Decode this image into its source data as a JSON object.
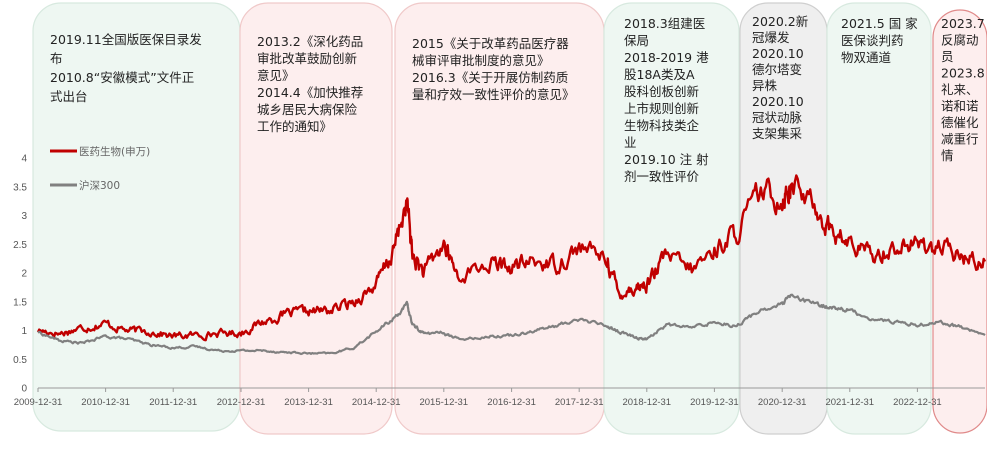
{
  "chart_data": {
    "type": "line",
    "title": "",
    "xlabel": "",
    "ylabel": "",
    "ylim": [
      0,
      4
    ],
    "yticks": [
      "0",
      "0.5",
      "1",
      "1.5",
      "2",
      "2.5",
      "3",
      "3.5",
      "4"
    ],
    "xticks": [
      "2009-12-31",
      "2010-12-31",
      "2011-12-31",
      "2012-12-31",
      "2013-12-31",
      "2014-12-31",
      "2015-12-31",
      "2016-12-31",
      "2017-12-31",
      "2018-12-31",
      "2019-12-31",
      "2020-12-31",
      "2021-12-31",
      "2022-12-31"
    ],
    "legend_position": "upper-left",
    "series": [
      {
        "name": "医药生物(申万)",
        "color": "#c00000",
        "x": [
          "2009-12-31",
          "2010-04-30",
          "2010-08-31",
          "2010-12-31",
          "2011-04-30",
          "2011-08-31",
          "2011-12-31",
          "2012-04-30",
          "2012-08-31",
          "2012-12-31",
          "2013-04-30",
          "2013-08-31",
          "2013-12-31",
          "2014-04-30",
          "2014-08-31",
          "2014-12-31",
          "2015-03-31",
          "2015-06-15",
          "2015-07-15",
          "2015-09-15",
          "2015-12-31",
          "2016-03-15",
          "2016-08-31",
          "2016-12-31",
          "2017-04-30",
          "2017-08-31",
          "2017-12-31",
          "2018-05-31",
          "2018-07-31",
          "2018-10-31",
          "2018-12-31",
          "2019-04-15",
          "2019-08-31",
          "2019-12-31",
          "2020-04-30",
          "2020-08-31",
          "2020-12-31",
          "2021-02-15",
          "2021-06-30",
          "2021-09-30",
          "2021-12-31",
          "2022-04-30",
          "2022-08-31",
          "2022-12-31",
          "2023-04-30",
          "2023-08-31",
          "2023-12-31"
        ],
        "values": [
          1.0,
          0.95,
          1.05,
          1.12,
          1.0,
          0.98,
          0.9,
          0.92,
          0.95,
          0.96,
          1.15,
          1.28,
          1.33,
          1.35,
          1.5,
          1.8,
          2.35,
          3.25,
          2.3,
          2.0,
          2.5,
          1.95,
          2.15,
          2.1,
          2.2,
          2.15,
          2.45,
          2.25,
          1.65,
          1.75,
          1.8,
          2.3,
          2.05,
          2.4,
          2.7,
          3.4,
          3.3,
          3.55,
          3.15,
          2.7,
          2.5,
          2.3,
          2.45,
          2.5,
          2.45,
          2.25,
          2.2
        ]
      },
      {
        "name": "沪深300",
        "color": "#808080",
        "x": [
          "2009-12-31",
          "2010-04-30",
          "2010-08-31",
          "2010-12-31",
          "2011-04-30",
          "2011-08-31",
          "2011-12-31",
          "2012-04-30",
          "2012-08-31",
          "2012-12-31",
          "2013-04-30",
          "2013-08-31",
          "2013-12-31",
          "2014-04-30",
          "2014-08-31",
          "2014-12-31",
          "2015-03-31",
          "2015-06-15",
          "2015-07-15",
          "2015-09-15",
          "2015-12-31",
          "2016-03-15",
          "2016-08-31",
          "2016-12-31",
          "2017-04-30",
          "2017-08-31",
          "2017-12-31",
          "2018-05-31",
          "2018-07-31",
          "2018-10-31",
          "2018-12-31",
          "2019-04-15",
          "2019-08-31",
          "2019-12-31",
          "2020-04-30",
          "2020-08-31",
          "2020-12-31",
          "2021-02-15",
          "2021-06-30",
          "2021-09-30",
          "2021-12-31",
          "2022-04-30",
          "2022-08-31",
          "2022-12-31",
          "2023-04-30",
          "2023-08-31",
          "2023-12-31"
        ],
        "values": [
          0.97,
          0.82,
          0.78,
          0.9,
          0.85,
          0.75,
          0.7,
          0.72,
          0.65,
          0.65,
          0.65,
          0.62,
          0.6,
          0.6,
          0.7,
          0.98,
          1.2,
          1.45,
          1.1,
          0.95,
          0.96,
          0.85,
          0.9,
          0.92,
          1.0,
          1.08,
          1.2,
          1.08,
          0.98,
          0.88,
          0.85,
          1.1,
          1.05,
          1.15,
          1.08,
          1.35,
          1.45,
          1.6,
          1.45,
          1.4,
          1.35,
          1.2,
          1.15,
          1.1,
          1.15,
          1.05,
          0.92
        ]
      }
    ],
    "annotations": [
      {
        "id": "a1",
        "fill": "#eef7f2",
        "stroke": "#d7e9df",
        "lines": [
          "2019.11全国版医保目录发",
          "布",
          "2010.8“安徽模式”文件正",
          "式出台"
        ]
      },
      {
        "id": "a2",
        "fill": "#fdeeee",
        "stroke": "#f0c9c9",
        "lines": [
          "2013.2《深化药品",
          "审批改革鼓励创新",
          "意见》",
          "2014.4《加快推荐",
          "城乡居民大病保险",
          "工作的通知》"
        ]
      },
      {
        "id": "a3",
        "fill": "#fdeeee",
        "stroke": "#f0c9c9",
        "lines": [
          "2015《关于改革药品医疗器",
          "械审评审批制度的意见》",
          "2016.3《关于开展仿制药质",
          "量和疗效一致性评价的意见》"
        ]
      },
      {
        "id": "a4",
        "fill": "#eef7f2",
        "stroke": "#d7e9df",
        "lines": [
          "2018.3组建医",
          "保局",
          "2018-2019 港",
          "股18A类及A",
          "股科创板创新",
          "上市规则创新",
          "生物科技类企",
          "业",
          "2019.10 注 射",
          "剂一致性评价"
        ]
      },
      {
        "id": "a5",
        "fill": "#efefef",
        "stroke": "#cfcfcf",
        "lines": [
          "2020.2新",
          "冠爆发",
          "2020.10",
          "德尔塔变",
          "异株",
          "2020.10",
          "冠状动脉",
          "支架集采"
        ]
      },
      {
        "id": "a6",
        "fill": "#eef7f2",
        "stroke": "#d7e9df",
        "lines": [
          "2021.5 国 家",
          "医保谈判药",
          "物双通道"
        ]
      },
      {
        "id": "a7",
        "fill": "#fdeeee",
        "stroke": "#e08a8a",
        "lines": [
          "2023.7",
          "反腐动",
          "员",
          "2023.8",
          "礼来、",
          "诺和诺",
          "德催化",
          "减重行",
          "情"
        ]
      }
    ]
  }
}
